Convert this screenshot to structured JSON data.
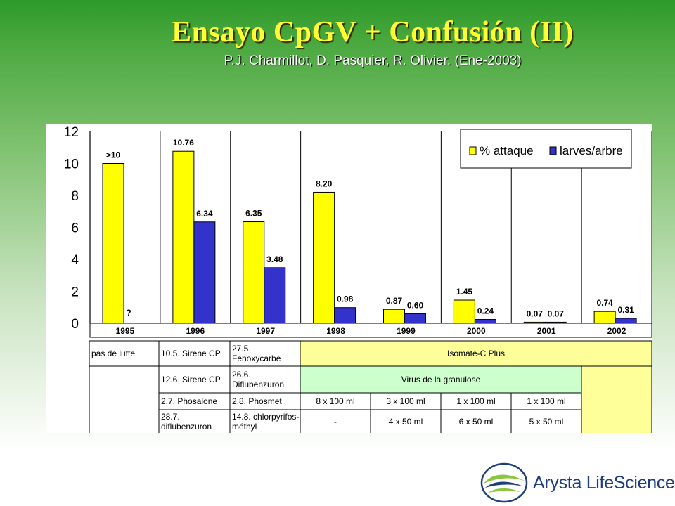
{
  "slide": {
    "title": "Ensayo CpGV + Confusión (II)",
    "subtitle": "P.J. Charmillot, D. Pasquier, R. Olivier. (Ene-2003)"
  },
  "chart_data": {
    "type": "bar",
    "categories": [
      "1995",
      "1996",
      "1997",
      "1998",
      "1999",
      "2000",
      "2001",
      "2002"
    ],
    "series": [
      {
        "name": "% attaque",
        "color": "#ffff00",
        "values": [
          10,
          10.76,
          6.35,
          8.2,
          0.87,
          1.45,
          0.07,
          0.74
        ],
        "labels": [
          ">10",
          "10.76",
          "6.35",
          "8.20",
          "0.87",
          "1.45",
          "0.07",
          "0.74"
        ]
      },
      {
        "name": "larves/arbre",
        "color": "#3333cc",
        "values": [
          null,
          6.34,
          3.48,
          0.98,
          0.6,
          0.24,
          0.07,
          0.31
        ],
        "labels": [
          "?",
          "6.34",
          "3.48",
          "0.98",
          "0.60",
          "0.24",
          "0.07",
          "0.31"
        ]
      }
    ],
    "yticks": [
      "0",
      "2",
      "4",
      "6",
      "8",
      "10",
      "12"
    ],
    "ylim": [
      0,
      12
    ],
    "xlabel": "",
    "ylabel": "",
    "legend": "top-right",
    "grid": false
  },
  "treatment_table": {
    "rows": [
      {
        "cells": [
          {
            "text": "pas de lutte",
            "col": 0,
            "span": 1,
            "align": "left"
          },
          {
            "text": "10.5. Sirene CP",
            "col": 1,
            "span": 1,
            "align": "left"
          },
          {
            "text": "27.5.\nFénoxycarbe",
            "col": 2,
            "span": 1,
            "align": "left"
          },
          {
            "text": "Isomate-C Plus",
            "col": 3,
            "span": 5,
            "align": "center",
            "highlight": "yellow"
          }
        ]
      },
      {
        "cells": [
          {
            "text": "12.6. Sirene CP",
            "col": 1,
            "span": 1,
            "align": "left"
          },
          {
            "text": "26.6.\nDiflubenzuron",
            "col": 2,
            "span": 1,
            "align": "left"
          },
          {
            "text": "Virus de la granulose",
            "col": 3,
            "span": 4,
            "align": "center",
            "highlight": "green"
          }
        ]
      },
      {
        "cells": [
          {
            "text": "2.7.  Phosalone",
            "col": 1,
            "span": 1,
            "align": "left"
          },
          {
            "text": "2.8.  Phosmet",
            "col": 2,
            "span": 1,
            "align": "left"
          },
          {
            "text": "8 x 100 ml",
            "col": 3,
            "span": 1,
            "align": "center"
          },
          {
            "text": "3 x 100 ml",
            "col": 4,
            "span": 1,
            "align": "center"
          },
          {
            "text": "1 x 100 ml",
            "col": 5,
            "span": 1,
            "align": "center"
          },
          {
            "text": "1 x 100 ml",
            "col": 6,
            "span": 1,
            "align": "center"
          }
        ]
      },
      {
        "cells": [
          {
            "text": "28.7.\ndiflubenzuron",
            "col": 1,
            "span": 1,
            "align": "left"
          },
          {
            "text": "14.8. chlorpyrifos-\nméthyl",
            "col": 2,
            "span": 1,
            "align": "left"
          },
          {
            "text": "-",
            "col": 3,
            "span": 1,
            "align": "center"
          },
          {
            "text": "4 x 50 ml",
            "col": 4,
            "span": 1,
            "align": "center"
          },
          {
            "text": "6 x 50 ml",
            "col": 5,
            "span": 1,
            "align": "center"
          },
          {
            "text": "5 x 50 ml",
            "col": 6,
            "span": 1,
            "align": "center"
          }
        ]
      }
    ]
  },
  "brand": {
    "name": "Arysta LifeScience"
  }
}
